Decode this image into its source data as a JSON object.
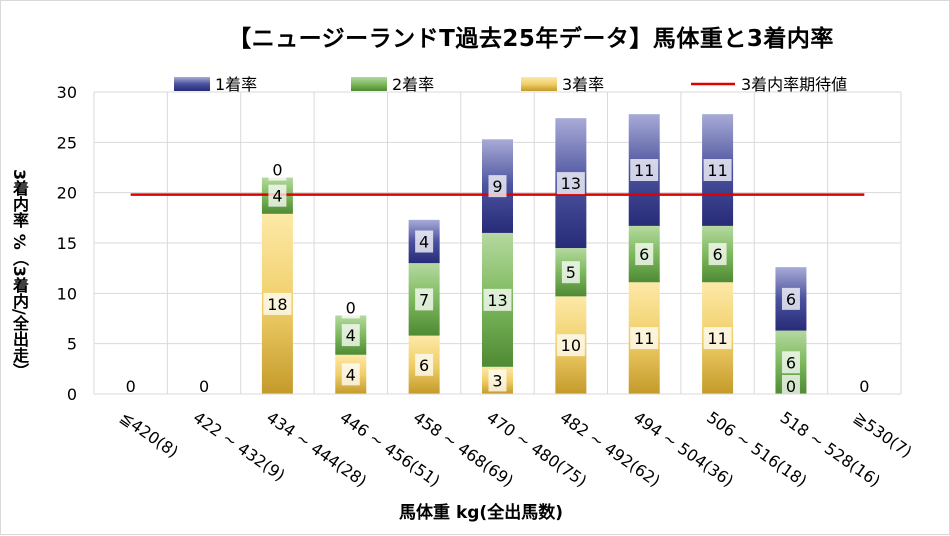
{
  "chart_data": {
    "type": "bar",
    "stacked": true,
    "title": "【ニュージーランドT過去25年データ】馬体重と3着内率",
    "xlabel": "馬体重 kg(全出馬数)",
    "ylabel": "3着内率 %（3着内/全出走）",
    "ylim": [
      0,
      30
    ],
    "yticks": [
      "0",
      "5",
      "10",
      "15",
      "20",
      "25",
      "30"
    ],
    "categories": [
      "≦420(8)",
      "422 ~ 432(9)",
      "434 ~ 444(28)",
      "446 ~ 456(51)",
      "458 ~ 468(69)",
      "470 ~ 480(75)",
      "482 ~ 492(62)",
      "494 ~ 504(36)",
      "506 ~ 516(18)",
      "518 ~ 528(16)",
      "≧530(7)"
    ],
    "series": [
      {
        "name": "3着率",
        "color": "#e0b84a",
        "values": [
          0,
          0,
          17.9,
          3.9,
          5.8,
          2.7,
          9.7,
          11.1,
          11.1,
          0,
          0
        ]
      },
      {
        "name": "2着率",
        "color": "#70a850",
        "values": [
          0,
          0,
          3.6,
          3.9,
          7.2,
          13.3,
          4.8,
          5.6,
          5.6,
          6.3,
          0
        ]
      },
      {
        "name": "1着率",
        "color": "#3a3f8c",
        "values": [
          0,
          0,
          0,
          0,
          4.3,
          9.3,
          12.9,
          11.1,
          11.1,
          6.3,
          0
        ]
      }
    ],
    "data_labels": {
      "3着率": [
        "0",
        "0",
        "18",
        "4",
        "6",
        "3",
        "10",
        "11",
        "11",
        "0",
        "0"
      ],
      "2着率": [
        "",
        "",
        "4",
        "4",
        "7",
        "13",
        "5",
        "6",
        "6",
        "6",
        ""
      ],
      "1着率": [
        "",
        "",
        "0",
        "0",
        "4",
        "9",
        "13",
        "11",
        "11",
        "6",
        ""
      ]
    },
    "reference_line": {
      "name": "3着内率期待値",
      "value": 19.8,
      "color": "#e00000"
    },
    "legend": [
      "1着率",
      "2着率",
      "3着率",
      "3着内率期待値"
    ],
    "legend_position": "top",
    "grid": true
  }
}
